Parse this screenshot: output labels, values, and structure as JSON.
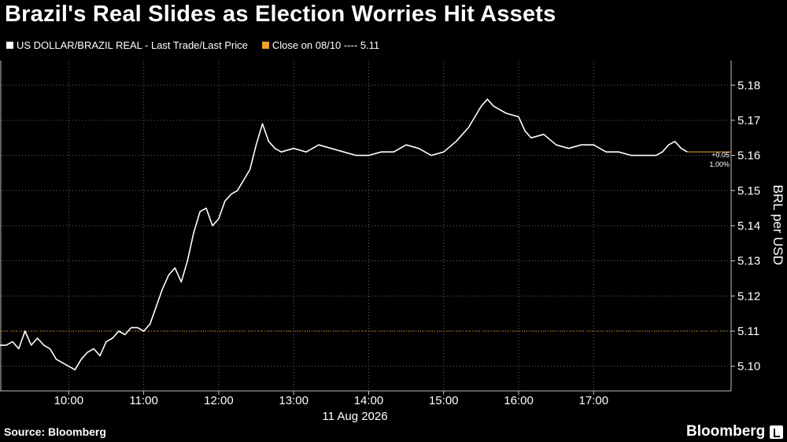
{
  "title": "Brazil's Real Slides as Election Worries Hit Assets",
  "legend": {
    "series_label": "US DOLLAR/BRAZIL REAL - Last Trade/Last Price",
    "close_label": "Close on 08/10 ---- 5.11",
    "series_color": "#ffffff",
    "close_color": "#f0a030"
  },
  "footer": {
    "source": "Source: Bloomberg",
    "brand": "Bloomberg"
  },
  "chart_data": {
    "type": "line",
    "date": "11 Aug 2026",
    "ylabel": "BRL per USD",
    "ylim": [
      5.093,
      5.187
    ],
    "xlim": [
      "09:05",
      "18:50"
    ],
    "x_ticks": [
      "10:00",
      "11:00",
      "12:00",
      "13:00",
      "14:00",
      "15:00",
      "16:00",
      "17:00"
    ],
    "y_ticks": [
      "5.10",
      "5.11",
      "5.12",
      "5.13",
      "5.14",
      "5.15",
      "5.16",
      "5.17",
      "5.18"
    ],
    "grid": true,
    "reference_line": {
      "value": 5.11,
      "label": "Close on 08/10"
    },
    "change_label": {
      "abs": "+0.05",
      "pct": "1.00%"
    },
    "series": [
      {
        "name": "US DOLLAR/BRAZIL REAL - Last Trade/Last Price",
        "x": [
          "09:05",
          "09:10",
          "09:15",
          "09:20",
          "09:25",
          "09:30",
          "09:35",
          "09:40",
          "09:45",
          "09:50",
          "09:55",
          "10:00",
          "10:05",
          "10:10",
          "10:15",
          "10:20",
          "10:25",
          "10:30",
          "10:35",
          "10:40",
          "10:45",
          "10:50",
          "10:55",
          "11:00",
          "11:05",
          "11:10",
          "11:15",
          "11:20",
          "11:25",
          "11:30",
          "11:35",
          "11:40",
          "11:45",
          "11:50",
          "11:55",
          "12:00",
          "12:05",
          "12:10",
          "12:15",
          "12:20",
          "12:25",
          "12:30",
          "12:35",
          "12:40",
          "12:45",
          "12:50",
          "13:00",
          "13:10",
          "13:20",
          "13:30",
          "13:40",
          "13:50",
          "14:00",
          "14:10",
          "14:20",
          "14:30",
          "14:40",
          "14:50",
          "15:00",
          "15:10",
          "15:20",
          "15:30",
          "15:35",
          "15:40",
          "15:50",
          "16:00",
          "16:05",
          "16:10",
          "16:20",
          "16:30",
          "16:40",
          "16:50",
          "17:00",
          "17:10",
          "17:20",
          "17:30",
          "17:40",
          "17:50",
          "17:55",
          "18:00",
          "18:05",
          "18:10",
          "18:15"
        ],
        "values": [
          5.106,
          5.106,
          5.107,
          5.105,
          5.11,
          5.106,
          5.108,
          5.106,
          5.105,
          5.102,
          5.101,
          5.1,
          5.099,
          5.102,
          5.104,
          5.105,
          5.103,
          5.107,
          5.108,
          5.11,
          5.109,
          5.111,
          5.111,
          5.11,
          5.112,
          5.117,
          5.122,
          5.126,
          5.128,
          5.124,
          5.13,
          5.138,
          5.144,
          5.145,
          5.14,
          5.142,
          5.147,
          5.149,
          5.15,
          5.153,
          5.156,
          5.163,
          5.169,
          5.164,
          5.162,
          5.161,
          5.162,
          5.161,
          5.163,
          5.162,
          5.161,
          5.16,
          5.16,
          5.161,
          5.161,
          5.163,
          5.162,
          5.16,
          5.161,
          5.164,
          5.168,
          5.174,
          5.176,
          5.174,
          5.172,
          5.171,
          5.167,
          5.165,
          5.166,
          5.163,
          5.162,
          5.163,
          5.163,
          5.161,
          5.161,
          5.16,
          5.16,
          5.16,
          5.161,
          5.163,
          5.164,
          5.162,
          5.161
        ]
      }
    ]
  }
}
